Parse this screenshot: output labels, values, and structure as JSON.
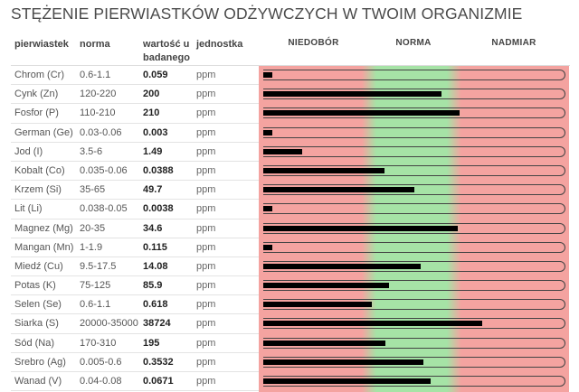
{
  "title": "STĘŻENIE PIERWIASTKÓW ODŻYWCZYCH W TWOIM ORGANIZMIE",
  "headers": {
    "element": "pierwiastek",
    "norm": "norma",
    "value": "wartość u badanego",
    "unit": "jednostka",
    "zone_low": "NIEDOBÓR",
    "zone_norm": "NORMA",
    "zone_high": "NADMIAR"
  },
  "colors": {
    "deficiency": "#f4a3a0",
    "norm": "#a6e3a6",
    "excess": "#f4a3a0",
    "bar": "#000000"
  },
  "rows": [
    {
      "name": "Chrom (Cr)",
      "norm": "0.6-1.1",
      "value": "0.059",
      "unit": "ppm",
      "level": 0.03
    },
    {
      "name": "Cynk (Zn)",
      "norm": "120-220",
      "value": "200",
      "unit": "ppm",
      "level": 0.59
    },
    {
      "name": "Fosfor (P)",
      "norm": "110-210",
      "value": "210",
      "unit": "ppm",
      "level": 0.65
    },
    {
      "name": "German (Ge)",
      "norm": "0.03-0.06",
      "value": "0.003",
      "unit": "ppm",
      "level": 0.03
    },
    {
      "name": "Jod (I)",
      "norm": "3.5-6",
      "value": "1.49",
      "unit": "ppm",
      "level": 0.13
    },
    {
      "name": "Kobalt (Co)",
      "norm": "0.035-0.06",
      "value": "0.0388",
      "unit": "ppm",
      "level": 0.4
    },
    {
      "name": "Krzem (Si)",
      "norm": "35-65",
      "value": "49.7",
      "unit": "ppm",
      "level": 0.5
    },
    {
      "name": "Lit (Li)",
      "norm": "0.038-0.05",
      "value": "0.0038",
      "unit": "ppm",
      "level": 0.03
    },
    {
      "name": "Magnez (Mg)",
      "norm": "20-35",
      "value": "34.6",
      "unit": "ppm",
      "level": 0.645
    },
    {
      "name": "Mangan (Mn)",
      "norm": "1-1.9",
      "value": "0.115",
      "unit": "ppm",
      "level": 0.03
    },
    {
      "name": "Miedź (Cu)",
      "norm": "9.5-17.5",
      "value": "14.08",
      "unit": "ppm",
      "level": 0.52
    },
    {
      "name": "Potas (K)",
      "norm": "75-125",
      "value": "85.9",
      "unit": "ppm",
      "level": 0.415
    },
    {
      "name": "Selen (Se)",
      "norm": "0.6-1.1",
      "value": "0.618",
      "unit": "ppm",
      "level": 0.36
    },
    {
      "name": "Siarka (S)",
      "norm": "20000-35000",
      "value": "38724",
      "unit": "ppm",
      "level": 0.725
    },
    {
      "name": "Sód (Na)",
      "norm": "170-310",
      "value": "195",
      "unit": "ppm",
      "level": 0.405
    },
    {
      "name": "Srebro (Ag)",
      "norm": "0.005-0.6",
      "value": "0.3532",
      "unit": "ppm",
      "level": 0.53
    },
    {
      "name": "Wanad (V)",
      "norm": "0.04-0.08",
      "value": "0.0671",
      "unit": "ppm",
      "level": 0.555
    }
  ]
}
